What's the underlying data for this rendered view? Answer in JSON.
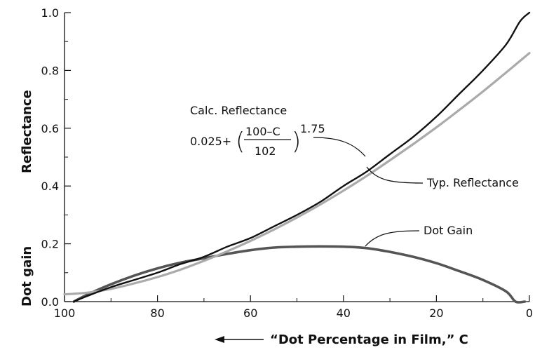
{
  "chart_data": {
    "type": "line",
    "title": "",
    "xlabel": "“Dot Percentage in Film,” C",
    "ylabel_top": "Reflectance",
    "ylabel_bottom": "Dot gain",
    "xlim": [
      100,
      0
    ],
    "ylim": [
      0.0,
      1.0
    ],
    "x_direction": "reversed",
    "x_ticks": [
      "100",
      "80",
      "60",
      "40",
      "20",
      "0"
    ],
    "y_ticks": [
      "0.0",
      "0.2",
      "0.4",
      "0.6",
      "0.8",
      "1.0"
    ],
    "grid": false,
    "series": [
      {
        "name": "Typ. Reflectance",
        "color": "#111111",
        "x": [
          98,
          95,
          90,
          85,
          80,
          75,
          70,
          65,
          60,
          55,
          50,
          45,
          40,
          35,
          30,
          25,
          20,
          15,
          10,
          5,
          2,
          0
        ],
        "y": [
          0.0,
          0.02,
          0.05,
          0.075,
          0.1,
          0.13,
          0.155,
          0.19,
          0.22,
          0.26,
          0.3,
          0.345,
          0.4,
          0.45,
          0.51,
          0.57,
          0.64,
          0.72,
          0.8,
          0.89,
          0.97,
          1.0
        ]
      },
      {
        "name": "Calc. Reflectance",
        "color": "#aaaaaa",
        "x": [
          100,
          95,
          90,
          85,
          80,
          75,
          70,
          65,
          60,
          55,
          50,
          45,
          40,
          35,
          30,
          25,
          20,
          15,
          10,
          5,
          0
        ],
        "y": [
          0.025,
          0.031,
          0.044,
          0.063,
          0.085,
          0.111,
          0.141,
          0.174,
          0.21,
          0.249,
          0.291,
          0.336,
          0.384,
          0.435,
          0.489,
          0.545,
          0.603,
          0.664,
          0.727,
          0.793,
          0.86
        ]
      },
      {
        "name": "Dot Gain",
        "color": "#555555",
        "x": [
          98,
          95,
          90,
          85,
          80,
          75,
          70,
          65,
          60,
          55,
          50,
          45,
          40,
          35,
          30,
          25,
          20,
          15,
          10,
          5,
          3,
          1
        ],
        "y": [
          0.0,
          0.025,
          0.06,
          0.09,
          0.115,
          0.135,
          0.15,
          0.165,
          0.178,
          0.187,
          0.19,
          0.191,
          0.19,
          0.185,
          0.172,
          0.155,
          0.133,
          0.105,
          0.075,
          0.035,
          0.0,
          0.0
        ]
      }
    ],
    "annotations": {
      "calc_label": "Calc. Reflectance",
      "formula_prefix": "0.025+",
      "formula_numerator": "100–C",
      "formula_denominator": "102",
      "formula_exponent": "1.75",
      "typ_label": "Typ. Reflectance",
      "gain_label": "Dot Gain"
    }
  }
}
